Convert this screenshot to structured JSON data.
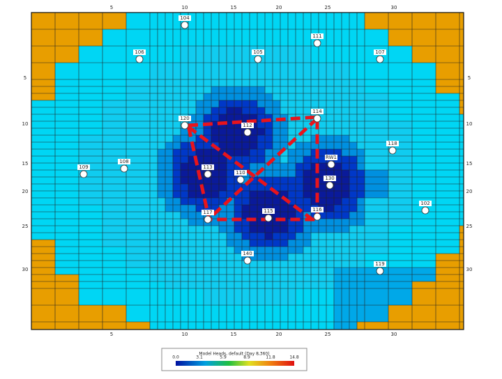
{
  "axes": {
    "top": [
      "5",
      "10",
      "15",
      "20",
      "25",
      "30"
    ],
    "bottom": [
      "5",
      "10",
      "15",
      "20",
      "25",
      "30"
    ],
    "left": [
      "5",
      "10",
      "15",
      "20",
      "25",
      "30"
    ],
    "right": [
      "5",
      "10",
      "15",
      "20",
      "25",
      "30"
    ]
  },
  "wells": [
    "104",
    "111",
    "106",
    "105",
    "107",
    "120",
    "112",
    "114",
    "118",
    "109",
    "108",
    "113",
    "110",
    "RW1",
    "130",
    "117",
    "115",
    "116",
    "102",
    "140",
    "119"
  ],
  "legend": {
    "title": "Model Heads, default (Day 8,360)",
    "ticks": [
      "0.0",
      "3.1",
      "5.9",
      "8.9",
      "11.8",
      "14.8"
    ]
  }
}
